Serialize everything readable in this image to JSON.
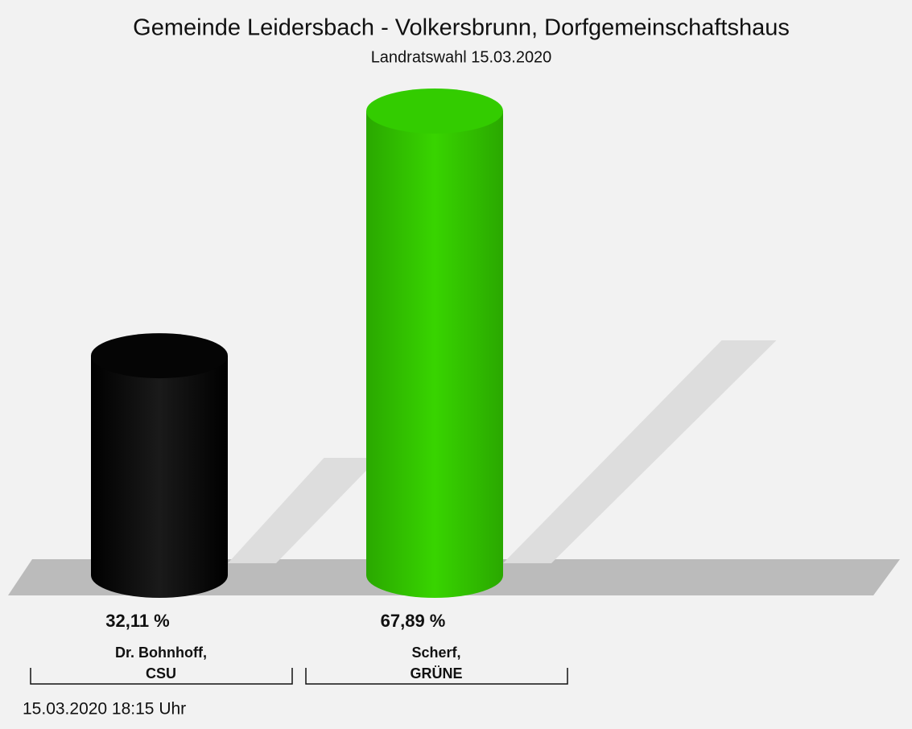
{
  "chart_data": {
    "type": "bar",
    "title": "Gemeinde Leidersbach - Volkersbrunn, Dorfgemeinschaftshaus",
    "subtitle": "Landratswahl 15.03.2020",
    "categories": [
      [
        "Dr. Bohnhoff,",
        "CSU"
      ],
      [
        "Scherf,",
        "GRÜNE"
      ]
    ],
    "values": [
      32.11,
      67.89
    ],
    "value_labels": [
      "32,11 %",
      "67,89 %"
    ],
    "colors": [
      "#000000",
      "#33cc00"
    ],
    "footer": "15.03.2020 18:15 Uhr"
  }
}
